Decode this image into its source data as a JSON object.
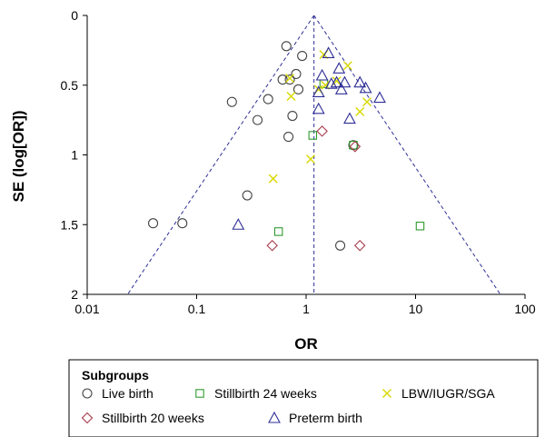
{
  "chart_data": {
    "type": "scatter",
    "title": "",
    "xlabel": "OR",
    "ylabel": "SE (log[OR])",
    "x_scale": "log",
    "xlim": [
      0.01,
      100
    ],
    "ylim": [
      0,
      2
    ],
    "y_inverted": true,
    "x_ticks": [
      "0.01",
      "0.1",
      "1",
      "10",
      "100"
    ],
    "y_ticks": [
      "0",
      "0.5",
      "1",
      "1.5",
      "2"
    ],
    "grid": false,
    "pooled_or": 1.18,
    "legend": {
      "title": "Subgroups",
      "placement": "bottom"
    },
    "colors": {
      "live_birth": "#444444",
      "stillbirth24": "#2e9a2e",
      "lbw": "#d8d800",
      "stillbirth20": "#a83a4a",
      "preterm": "#2e2e96",
      "funnel": "#2e2e96"
    },
    "series": [
      {
        "name": "Live birth",
        "marker": "circle",
        "color_key": "live_birth",
        "points": [
          {
            "x": 0.66,
            "y": 0.22
          },
          {
            "x": 0.92,
            "y": 0.29
          },
          {
            "x": 0.81,
            "y": 0.42
          },
          {
            "x": 0.61,
            "y": 0.46
          },
          {
            "x": 0.71,
            "y": 0.46
          },
          {
            "x": 0.85,
            "y": 0.53
          },
          {
            "x": 0.45,
            "y": 0.6
          },
          {
            "x": 0.21,
            "y": 0.62
          },
          {
            "x": 0.75,
            "y": 0.72
          },
          {
            "x": 0.36,
            "y": 0.75
          },
          {
            "x": 0.69,
            "y": 0.87
          },
          {
            "x": 2.7,
            "y": 0.93
          },
          {
            "x": 0.29,
            "y": 1.29
          },
          {
            "x": 0.04,
            "y": 1.49
          },
          {
            "x": 0.074,
            "y": 1.49
          },
          {
            "x": 2.05,
            "y": 1.65
          }
        ]
      },
      {
        "name": "Stillbirth 24 weeks",
        "marker": "square",
        "color_key": "stillbirth24",
        "points": [
          {
            "x": 1.45,
            "y": 0.49
          },
          {
            "x": 1.15,
            "y": 0.86
          },
          {
            "x": 2.7,
            "y": 0.93
          },
          {
            "x": 11.0,
            "y": 1.51
          },
          {
            "x": 0.56,
            "y": 1.55
          }
        ]
      },
      {
        "name": "LBW/IUGR/SGA",
        "marker": "x",
        "color_key": "lbw",
        "points": [
          {
            "x": 1.45,
            "y": 0.28
          },
          {
            "x": 2.4,
            "y": 0.36
          },
          {
            "x": 0.71,
            "y": 0.45
          },
          {
            "x": 1.5,
            "y": 0.5
          },
          {
            "x": 1.3,
            "y": 0.53
          },
          {
            "x": 1.9,
            "y": 0.47
          },
          {
            "x": 0.73,
            "y": 0.58
          },
          {
            "x": 3.6,
            "y": 0.62
          },
          {
            "x": 3.1,
            "y": 0.69
          },
          {
            "x": 1.1,
            "y": 1.03
          },
          {
            "x": 0.5,
            "y": 1.17
          }
        ]
      },
      {
        "name": "Stillbirth 20 weeks",
        "marker": "diamond",
        "color_key": "stillbirth20",
        "points": [
          {
            "x": 1.4,
            "y": 0.83
          },
          {
            "x": 2.8,
            "y": 0.94
          },
          {
            "x": 0.49,
            "y": 1.65
          },
          {
            "x": 3.1,
            "y": 1.65
          }
        ]
      },
      {
        "name": "Preterm birth",
        "marker": "triangle",
        "color_key": "preterm",
        "points": [
          {
            "x": 1.6,
            "y": 0.27
          },
          {
            "x": 2.0,
            "y": 0.38
          },
          {
            "x": 1.4,
            "y": 0.43
          },
          {
            "x": 3.1,
            "y": 0.48
          },
          {
            "x": 1.9,
            "y": 0.48
          },
          {
            "x": 2.25,
            "y": 0.48
          },
          {
            "x": 1.7,
            "y": 0.49
          },
          {
            "x": 3.5,
            "y": 0.52
          },
          {
            "x": 2.1,
            "y": 0.53
          },
          {
            "x": 1.3,
            "y": 0.55
          },
          {
            "x": 4.7,
            "y": 0.59
          },
          {
            "x": 1.3,
            "y": 0.67
          },
          {
            "x": 2.5,
            "y": 0.74
          },
          {
            "x": 0.24,
            "y": 1.5
          }
        ]
      }
    ]
  }
}
